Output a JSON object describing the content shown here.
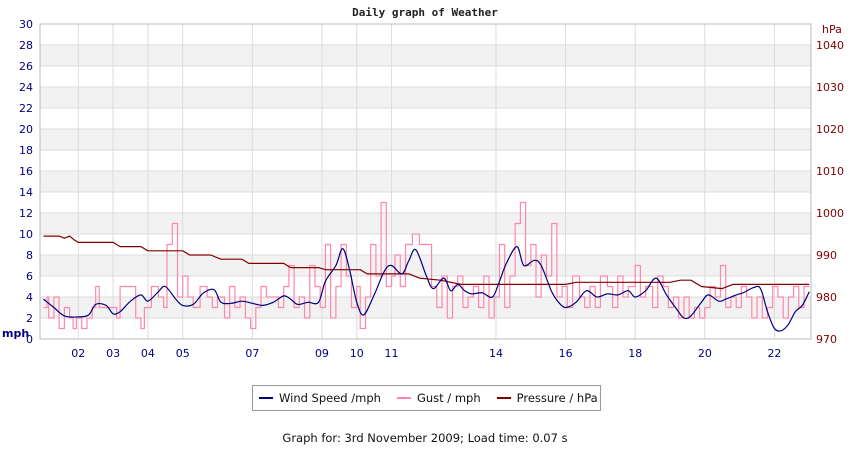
{
  "chart_data": {
    "type": "line",
    "title": "Daily graph of Weather",
    "left_axis": {
      "unit_label": "mph",
      "ylim": [
        0,
        30
      ],
      "ticks": [
        0,
        2,
        4,
        6,
        8,
        10,
        12,
        14,
        16,
        18,
        20,
        22,
        24,
        26,
        28,
        30
      ]
    },
    "right_axis": {
      "unit_label": "hPa",
      "ylim": [
        970,
        1045
      ],
      "ticks": [
        970,
        980,
        990,
        1000,
        1010,
        1020,
        1030,
        1040
      ]
    },
    "x_ticks": [
      {
        "x": 2,
        "label": "02"
      },
      {
        "x": 3,
        "label": "03"
      },
      {
        "x": 4,
        "label": "04"
      },
      {
        "x": 5,
        "label": "05"
      },
      {
        "x": 7,
        "label": "07"
      },
      {
        "x": 9,
        "label": "09"
      },
      {
        "x": 10,
        "label": "10"
      },
      {
        "x": 11,
        "label": "11"
      },
      {
        "x": 14,
        "label": "14"
      },
      {
        "x": 16,
        "label": "16"
      },
      {
        "x": 18,
        "label": "18"
      },
      {
        "x": 20,
        "label": "20"
      },
      {
        "x": 22,
        "label": "22"
      }
    ],
    "grid": true,
    "series": [
      {
        "name": "Wind Speed /mph",
        "color": "#000080",
        "axis": "left",
        "points": [
          [
            1,
            3.8
          ],
          [
            1.3,
            3.0
          ],
          [
            1.6,
            2.2
          ],
          [
            2,
            2.1
          ],
          [
            2.3,
            2.3
          ],
          [
            2.5,
            3.3
          ],
          [
            2.8,
            3.2
          ],
          [
            3.0,
            2.4
          ],
          [
            3.2,
            2.6
          ],
          [
            3.5,
            3.6
          ],
          [
            3.8,
            4.2
          ],
          [
            4.0,
            3.6
          ],
          [
            4.3,
            4.5
          ],
          [
            4.5,
            5.0
          ],
          [
            4.8,
            3.8
          ],
          [
            5.0,
            3.2
          ],
          [
            5.3,
            3.3
          ],
          [
            5.6,
            4.4
          ],
          [
            5.9,
            4.7
          ],
          [
            6.1,
            3.5
          ],
          [
            6.4,
            3.4
          ],
          [
            6.7,
            3.6
          ],
          [
            7.0,
            3.4
          ],
          [
            7.3,
            3.2
          ],
          [
            7.6,
            3.5
          ],
          [
            7.9,
            4.1
          ],
          [
            8.1,
            3.8
          ],
          [
            8.3,
            3.3
          ],
          [
            8.6,
            3.5
          ],
          [
            8.9,
            3.5
          ],
          [
            9.1,
            5.5
          ],
          [
            9.4,
            7.0
          ],
          [
            9.6,
            8.6
          ],
          [
            9.8,
            6.5
          ],
          [
            10.0,
            3.5
          ],
          [
            10.2,
            2.3
          ],
          [
            10.5,
            4.2
          ],
          [
            10.8,
            6.5
          ],
          [
            11.0,
            7.0
          ],
          [
            11.3,
            6.2
          ],
          [
            11.5,
            7.5
          ],
          [
            11.7,
            8.5
          ],
          [
            12.0,
            6.0
          ],
          [
            12.2,
            4.8
          ],
          [
            12.5,
            5.8
          ],
          [
            12.7,
            4.6
          ],
          [
            12.9,
            5.2
          ],
          [
            13.1,
            4.6
          ],
          [
            13.3,
            4.3
          ],
          [
            13.6,
            4.4
          ],
          [
            13.9,
            4.0
          ],
          [
            14.1,
            5.5
          ],
          [
            14.3,
            7.2
          ],
          [
            14.6,
            8.8
          ],
          [
            14.8,
            7.0
          ],
          [
            15.1,
            7.5
          ],
          [
            15.3,
            7.0
          ],
          [
            15.6,
            4.5
          ],
          [
            15.8,
            3.5
          ],
          [
            16.0,
            3.0
          ],
          [
            16.3,
            3.5
          ],
          [
            16.6,
            4.6
          ],
          [
            16.9,
            4.0
          ],
          [
            17.2,
            4.3
          ],
          [
            17.5,
            4.2
          ],
          [
            17.8,
            4.6
          ],
          [
            18.0,
            4.0
          ],
          [
            18.3,
            4.6
          ],
          [
            18.6,
            5.8
          ],
          [
            18.9,
            4.2
          ],
          [
            19.2,
            2.8
          ],
          [
            19.4,
            2.0
          ],
          [
            19.6,
            2.2
          ],
          [
            19.9,
            3.5
          ],
          [
            20.1,
            4.2
          ],
          [
            20.4,
            3.6
          ],
          [
            20.6,
            3.8
          ],
          [
            20.9,
            4.2
          ],
          [
            21.1,
            4.4
          ],
          [
            21.4,
            4.9
          ],
          [
            21.6,
            4.8
          ],
          [
            21.8,
            2.6
          ],
          [
            22.0,
            1.0
          ],
          [
            22.2,
            0.8
          ],
          [
            22.4,
            1.4
          ],
          [
            22.6,
            2.6
          ],
          [
            22.8,
            3.2
          ],
          [
            23.0,
            4.5
          ]
        ]
      },
      {
        "name": "Gust / mph",
        "color": "#ff88aa",
        "axis": "left",
        "points": [
          [
            1,
            3.0
          ],
          [
            1.1,
            4.0
          ],
          [
            1.15,
            2.0
          ],
          [
            1.3,
            4.0
          ],
          [
            1.45,
            1.0
          ],
          [
            1.6,
            3.0
          ],
          [
            1.75,
            2.0
          ],
          [
            1.85,
            1.0
          ],
          [
            1.95,
            2.0
          ],
          [
            2.1,
            1.0
          ],
          [
            2.25,
            2.0
          ],
          [
            2.4,
            3.0
          ],
          [
            2.5,
            5.0
          ],
          [
            2.6,
            3.0
          ],
          [
            2.8,
            3.0
          ],
          [
            3.1,
            2.0
          ],
          [
            3.2,
            5.0
          ],
          [
            3.5,
            5.0
          ],
          [
            3.65,
            2.0
          ],
          [
            3.8,
            1.0
          ],
          [
            3.9,
            3.0
          ],
          [
            4.1,
            5.0
          ],
          [
            4.3,
            4.0
          ],
          [
            4.45,
            3.0
          ],
          [
            4.55,
            9.0
          ],
          [
            4.7,
            11.0
          ],
          [
            4.85,
            4.0
          ],
          [
            5.0,
            6.0
          ],
          [
            5.15,
            4.0
          ],
          [
            5.3,
            3.0
          ],
          [
            5.5,
            5.0
          ],
          [
            5.7,
            4.0
          ],
          [
            5.85,
            3.0
          ],
          [
            6.0,
            4.0
          ],
          [
            6.2,
            2.0
          ],
          [
            6.35,
            5.0
          ],
          [
            6.5,
            3.0
          ],
          [
            6.65,
            4.0
          ],
          [
            6.8,
            2.0
          ],
          [
            6.95,
            1.0
          ],
          [
            7.1,
            3.0
          ],
          [
            7.25,
            5.0
          ],
          [
            7.4,
            4.0
          ],
          [
            7.6,
            4.0
          ],
          [
            7.75,
            3.0
          ],
          [
            7.9,
            5.0
          ],
          [
            8.05,
            7.0
          ],
          [
            8.2,
            3.0
          ],
          [
            8.35,
            4.0
          ],
          [
            8.5,
            2.0
          ],
          [
            8.65,
            7.0
          ],
          [
            8.8,
            5.0
          ],
          [
            8.95,
            3.0
          ],
          [
            9.1,
            9.0
          ],
          [
            9.25,
            2.0
          ],
          [
            9.4,
            5.0
          ],
          [
            9.55,
            9.0
          ],
          [
            9.7,
            6.0
          ],
          [
            9.85,
            3.0
          ],
          [
            10.0,
            5.0
          ],
          [
            10.1,
            1.0
          ],
          [
            10.25,
            4.0
          ],
          [
            10.4,
            9.0
          ],
          [
            10.55,
            6.0
          ],
          [
            10.7,
            13.0
          ],
          [
            10.85,
            5.0
          ],
          [
            11.0,
            6.0
          ],
          [
            11.1,
            8.0
          ],
          [
            11.25,
            5.0
          ],
          [
            11.4,
            9.0
          ],
          [
            11.6,
            10.0
          ],
          [
            11.8,
            9.0
          ],
          [
            12.0,
            9.0
          ],
          [
            12.15,
            5.0
          ],
          [
            12.3,
            3.0
          ],
          [
            12.45,
            6.0
          ],
          [
            12.6,
            2.0
          ],
          [
            12.75,
            5.0
          ],
          [
            12.9,
            6.0
          ],
          [
            13.05,
            3.0
          ],
          [
            13.2,
            4.0
          ],
          [
            13.35,
            5.0
          ],
          [
            13.5,
            3.0
          ],
          [
            13.65,
            6.0
          ],
          [
            13.8,
            2.0
          ],
          [
            13.95,
            4.0
          ],
          [
            14.1,
            9.0
          ],
          [
            14.25,
            3.0
          ],
          [
            14.4,
            6.0
          ],
          [
            14.55,
            11.0
          ],
          [
            14.7,
            13.0
          ],
          [
            14.85,
            7.0
          ],
          [
            15.0,
            9.0
          ],
          [
            15.15,
            4.0
          ],
          [
            15.3,
            8.0
          ],
          [
            15.45,
            6.0
          ],
          [
            15.6,
            11.0
          ],
          [
            15.75,
            4.0
          ],
          [
            15.9,
            5.0
          ],
          [
            16.05,
            3.0
          ],
          [
            16.2,
            6.0
          ],
          [
            16.4,
            4.0
          ],
          [
            16.55,
            3.0
          ],
          [
            16.7,
            5.0
          ],
          [
            16.85,
            3.0
          ],
          [
            17.0,
            6.0
          ],
          [
            17.2,
            5.0
          ],
          [
            17.35,
            3.0
          ],
          [
            17.5,
            6.0
          ],
          [
            17.65,
            4.0
          ],
          [
            17.8,
            5.0
          ],
          [
            18.0,
            7.0
          ],
          [
            18.15,
            4.0
          ],
          [
            18.3,
            5.0
          ],
          [
            18.5,
            3.0
          ],
          [
            18.65,
            6.0
          ],
          [
            18.8,
            5.0
          ],
          [
            18.95,
            3.0
          ],
          [
            19.1,
            4.0
          ],
          [
            19.25,
            2.0
          ],
          [
            19.4,
            4.0
          ],
          [
            19.55,
            2.0
          ],
          [
            19.7,
            3.0
          ],
          [
            19.85,
            2.0
          ],
          [
            20.0,
            3.0
          ],
          [
            20.15,
            5.0
          ],
          [
            20.3,
            4.0
          ],
          [
            20.45,
            7.0
          ],
          [
            20.6,
            3.0
          ],
          [
            20.75,
            4.0
          ],
          [
            20.9,
            3.0
          ],
          [
            21.05,
            5.0
          ],
          [
            21.2,
            4.0
          ],
          [
            21.35,
            2.0
          ],
          [
            21.5,
            4.0
          ],
          [
            21.65,
            2.0
          ],
          [
            21.8,
            3.0
          ],
          [
            21.95,
            5.0
          ],
          [
            22.1,
            4.0
          ],
          [
            22.25,
            2.0
          ],
          [
            22.4,
            4.0
          ],
          [
            22.55,
            5.0
          ],
          [
            22.7,
            3.0
          ],
          [
            22.85,
            5.0
          ],
          [
            23.0,
            5.0
          ]
        ]
      },
      {
        "name": "Pressure / hPa",
        "color": "#800000",
        "axis": "right",
        "points": [
          [
            1.0,
            994.5
          ],
          [
            1.45,
            994.5
          ],
          [
            1.6,
            994.0
          ],
          [
            1.75,
            994.5
          ],
          [
            1.9,
            993.5
          ],
          [
            2.0,
            993.0
          ],
          [
            3.0,
            993.0
          ],
          [
            3.2,
            992.0
          ],
          [
            3.8,
            992.0
          ],
          [
            4.0,
            991.0
          ],
          [
            5.0,
            991.0
          ],
          [
            5.2,
            990.0
          ],
          [
            5.8,
            990.0
          ],
          [
            6.1,
            989.0
          ],
          [
            6.7,
            989.0
          ],
          [
            6.9,
            988.0
          ],
          [
            7.9,
            988.0
          ],
          [
            8.1,
            987.0
          ],
          [
            8.9,
            987.0
          ],
          [
            9.1,
            986.5
          ],
          [
            10.1,
            986.5
          ],
          [
            10.3,
            985.5
          ],
          [
            11.5,
            985.5
          ],
          [
            11.8,
            984.5
          ],
          [
            12.4,
            984.0
          ],
          [
            13.0,
            983.0
          ],
          [
            16.0,
            983.0
          ],
          [
            16.3,
            983.5
          ],
          [
            19.0,
            983.5
          ],
          [
            19.3,
            984.0
          ],
          [
            19.6,
            984.0
          ],
          [
            19.9,
            982.5
          ],
          [
            20.5,
            982.0
          ],
          [
            20.8,
            983.0
          ],
          [
            23.0,
            983.0
          ]
        ]
      }
    ]
  },
  "legend": {
    "items": [
      {
        "label": "Wind Speed /mph"
      },
      {
        "label": "Gust / mph"
      },
      {
        "label": "Pressure / hPa"
      }
    ]
  },
  "footer": "Graph for: 3rd November 2009; Load time: 0.07 s"
}
